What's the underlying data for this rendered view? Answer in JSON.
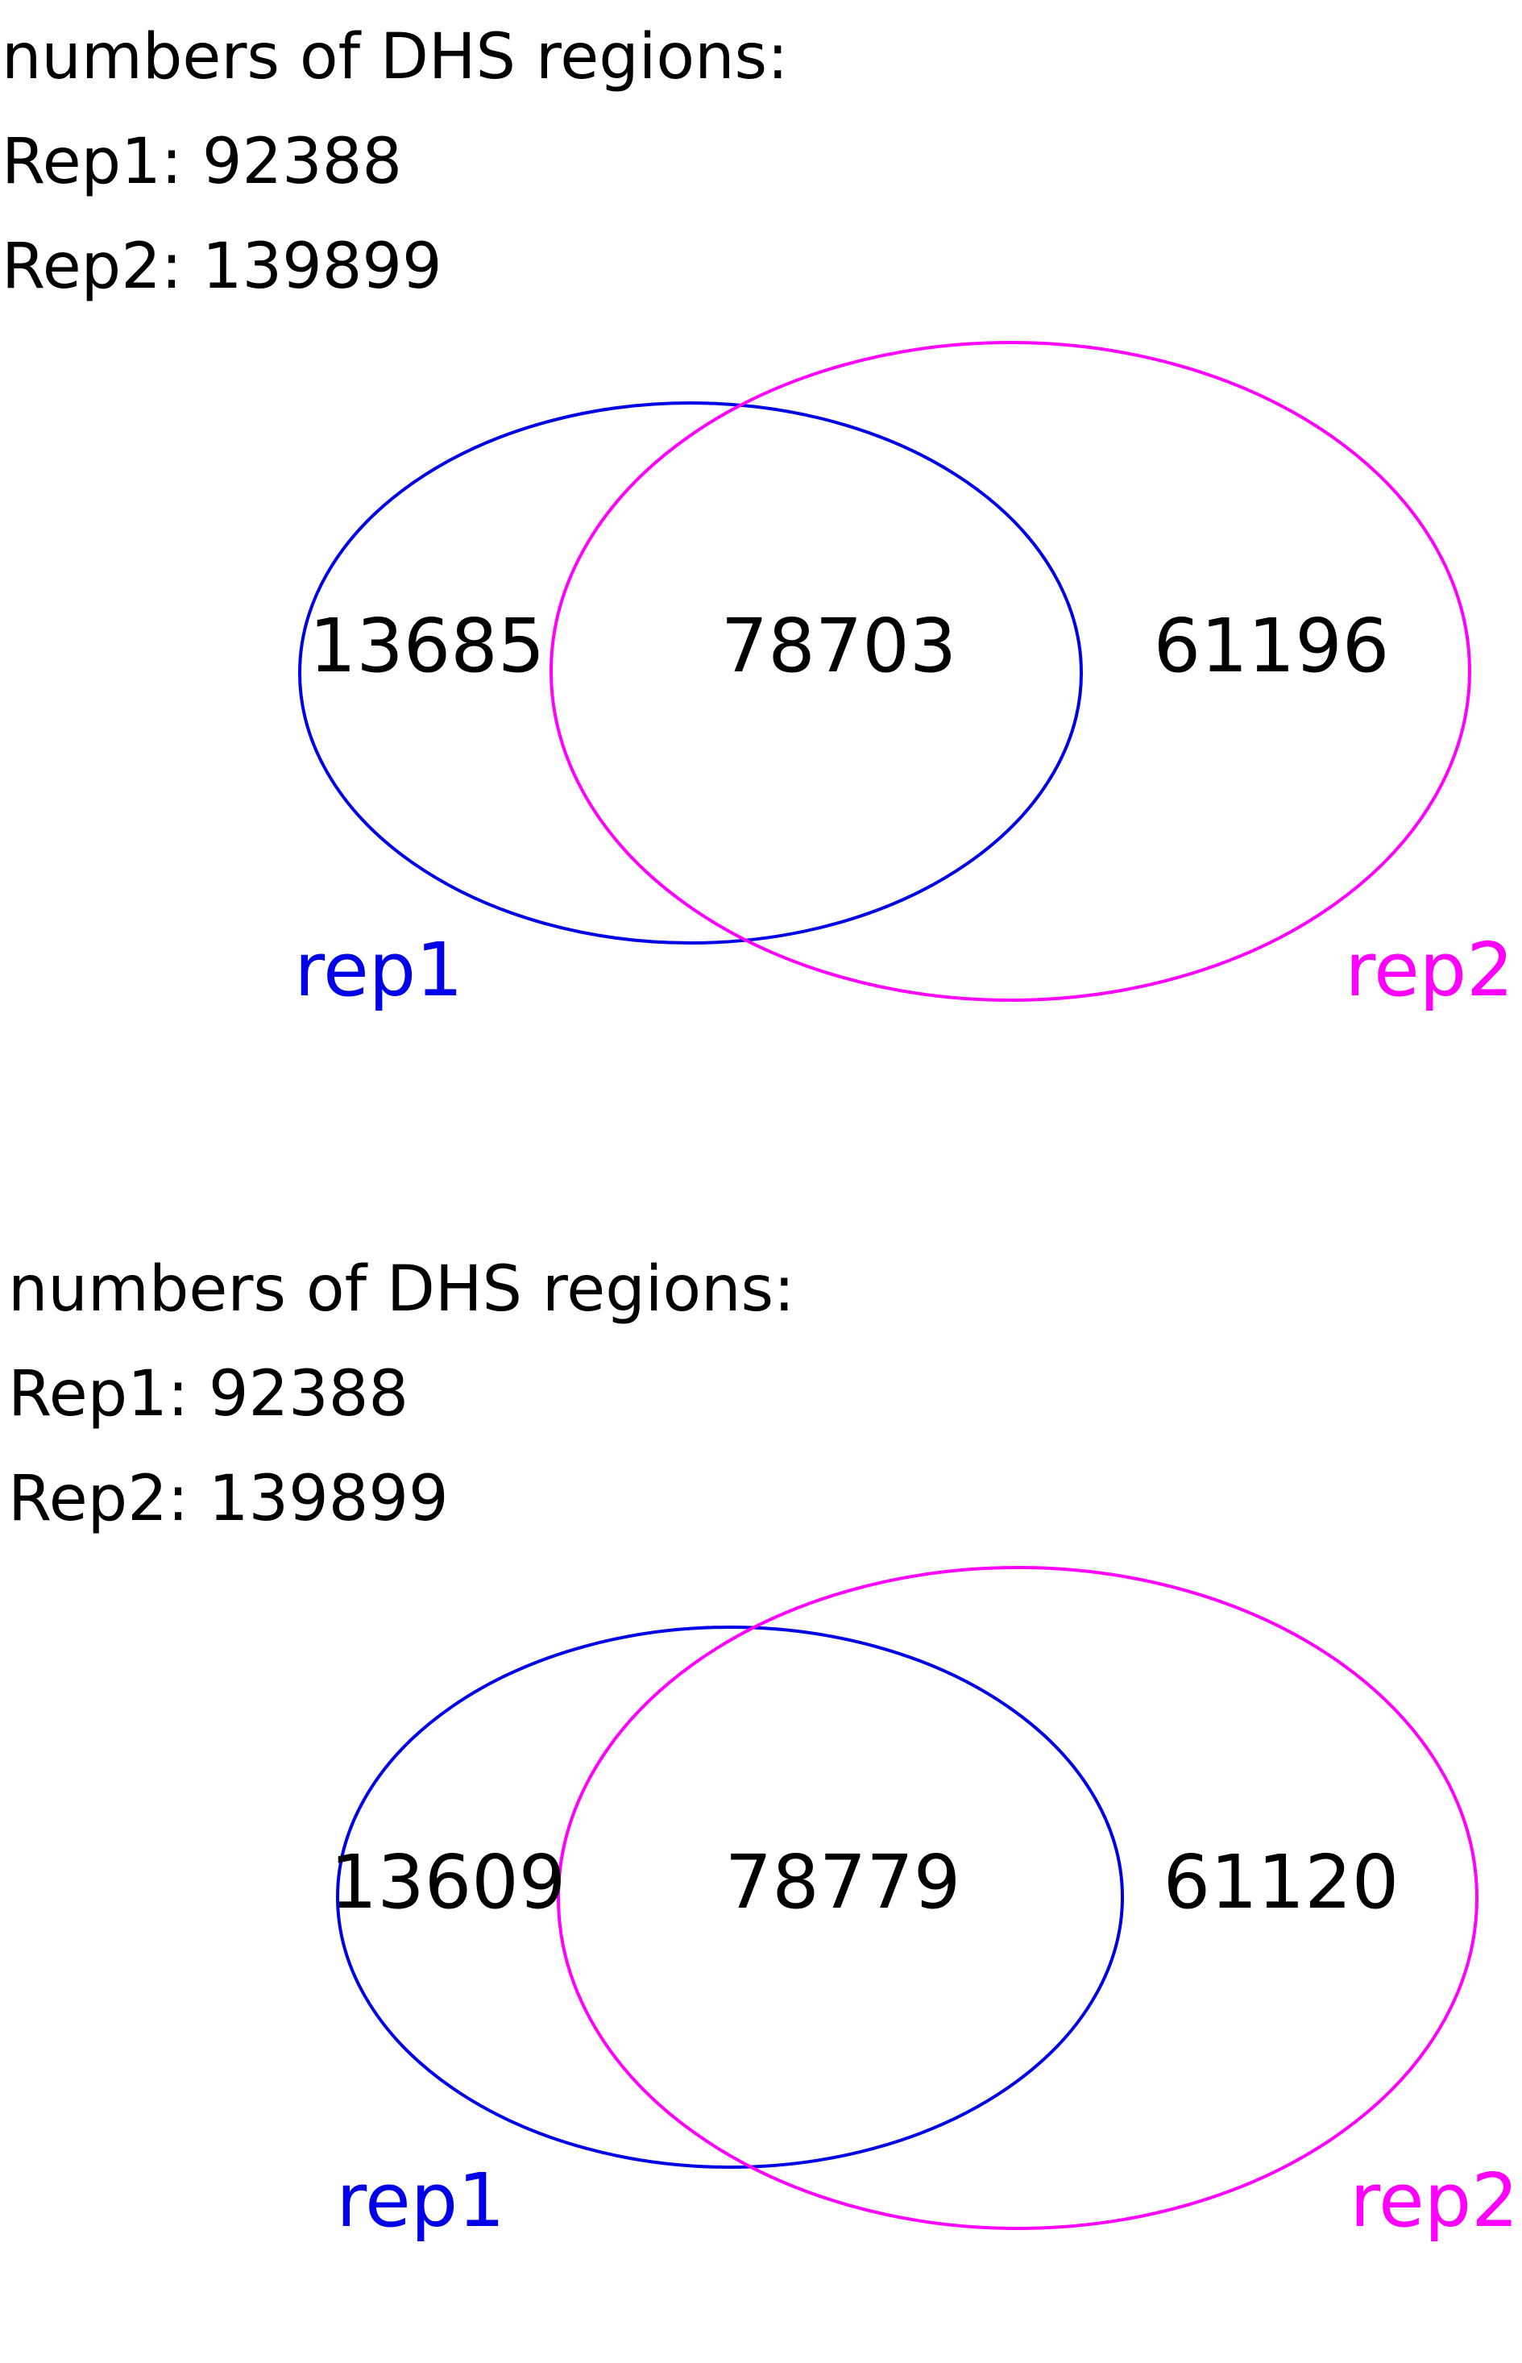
{
  "panels": [
    {
      "header": {
        "title": "numbers of DHS regions:",
        "rep1_line": "Rep1: 92388",
        "rep2_line": "Rep2: 139899"
      },
      "venn": {
        "only_rep1": "13685",
        "overlap": "78703",
        "only_rep2": "61196",
        "set1_label": "rep1",
        "set2_label": "rep2"
      }
    },
    {
      "header": {
        "title": "numbers of DHS regions:",
        "rep1_line": "Rep1: 92388",
        "rep2_line": "Rep2: 139899"
      },
      "venn": {
        "only_rep1": "13609",
        "overlap": "78779",
        "only_rep2": "61120",
        "set1_label": "rep1",
        "set2_label": "rep2"
      }
    }
  ],
  "colors": {
    "rep1": "#0000e6",
    "rep2": "#ff00ff",
    "text": "#000000"
  }
}
